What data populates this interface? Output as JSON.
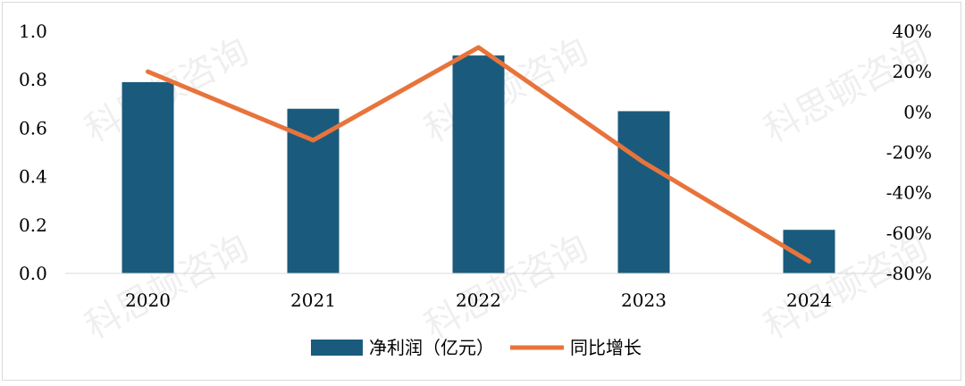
{
  "watermark_text": "科思顿咨询",
  "chart_data": {
    "type": "bar",
    "categories": [
      "2020",
      "2021",
      "2022",
      "2023",
      "2024"
    ],
    "series": [
      {
        "name": "净利润（亿元）",
        "type": "bar",
        "axis": "left",
        "color": "#1a5b7d",
        "values": [
          0.79,
          0.68,
          0.9,
          0.67,
          0.18
        ]
      },
      {
        "name": "同比增长",
        "type": "line",
        "axis": "right",
        "color": "#e8743b",
        "values": [
          20,
          -14,
          32,
          -25,
          -74
        ]
      }
    ],
    "y_left": {
      "range": [
        0,
        1.0
      ],
      "ticks": [
        "0.0",
        "0.2",
        "0.4",
        "0.6",
        "0.8",
        "1.0"
      ]
    },
    "y_right": {
      "range": [
        -80,
        40
      ],
      "ticks": [
        "-80%",
        "-60%",
        "-40%",
        "-20%",
        "0%",
        "20%",
        "40%"
      ]
    },
    "legend_position": "bottom-center",
    "grid": false
  }
}
